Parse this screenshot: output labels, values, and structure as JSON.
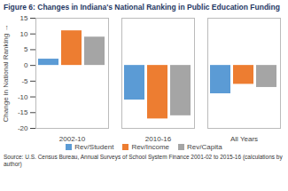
{
  "chart_data": {
    "type": "bar",
    "title": "Figure 6: Changes in Indiana's National Ranking in Public Education Funding",
    "y_label": "Change in National Ranking",
    "caption": "Source: U.S. Census Bureau, Annual Surveys of School System Finance 2001-02 to 2015-16 (calculations by author)",
    "categories": [
      "2002-10",
      "2010-16",
      "All Years"
    ],
    "series": [
      {
        "name": "Rev/Student",
        "color": "#5b9bd5",
        "values": [
          2,
          -11,
          -9
        ]
      },
      {
        "name": "Rev/Income",
        "color": "#ed7d31",
        "values": [
          11,
          -17,
          -6
        ]
      },
      {
        "name": "Rev/Capita",
        "color": "#a5a5a5",
        "values": [
          9,
          -16,
          -7
        ]
      }
    ],
    "ylim": [
      -20,
      15
    ],
    "yticks": [
      -20,
      -15,
      -10,
      -5,
      0,
      5,
      10,
      15
    ],
    "grid": false,
    "legend": "bottom"
  }
}
